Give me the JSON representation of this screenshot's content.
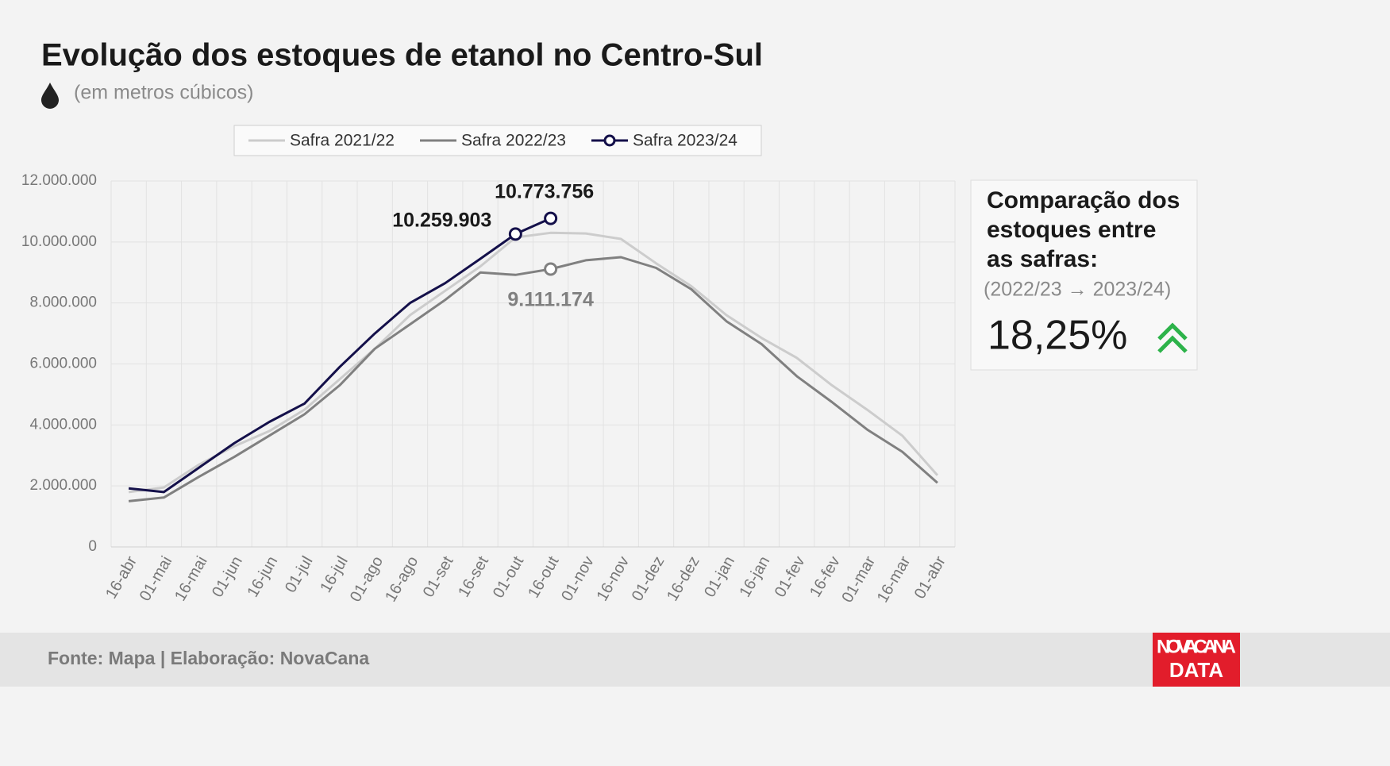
{
  "chart_data": {
    "type": "line",
    "title": "Evolução dos estoques de  etanol no Centro-Sul",
    "subtitle": "(em metros cúbicos)",
    "categories": [
      "16-abr",
      "01-mai",
      "16-mai",
      "01-jun",
      "16-jun",
      "01-jul",
      "16-jul",
      "01-ago",
      "16-ago",
      "01-set",
      "16-set",
      "01-out",
      "16-out",
      "01-nov",
      "16-nov",
      "01-dez",
      "16-dez",
      "01-jan",
      "16-jan",
      "01-fev",
      "16-fev",
      "01-mar",
      "16-mar",
      "01-abr"
    ],
    "series": [
      {
        "name": "Safra 2021/22",
        "color": "#cccccc",
        "values": [
          1800000,
          1950000,
          2700000,
          3300000,
          3800000,
          4500000,
          5500000,
          6500000,
          7600000,
          8400000,
          9200000,
          10150000,
          10300000,
          10280000,
          10100000,
          9300000,
          8550000,
          7600000,
          6850000,
          6200000,
          5300000,
          4500000,
          3650000,
          2350000
        ]
      },
      {
        "name": "Safra 2022/23",
        "color": "#808080",
        "values": [
          1500000,
          1620000,
          2300000,
          2950000,
          3650000,
          4350000,
          5300000,
          6500000,
          7300000,
          8100000,
          9000000,
          8920000,
          9111174,
          9400000,
          9500000,
          9150000,
          8450000,
          7400000,
          6650000,
          5600000,
          4750000,
          3850000,
          3120000,
          2100000
        ],
        "value_labels": [
          null,
          null,
          null,
          null,
          null,
          null,
          null,
          null,
          null,
          null,
          null,
          null,
          "9.111.174",
          null,
          null,
          null,
          null,
          null,
          null,
          null,
          null,
          null,
          null,
          null
        ]
      },
      {
        "name": "Safra 2023/24",
        "color": "#14104a",
        "values": [
          1920000,
          1800000,
          2600000,
          3400000,
          4100000,
          4700000,
          5900000,
          7000000,
          8000000,
          8650000,
          9450000,
          10259903,
          10773756,
          null,
          null,
          null,
          null,
          null,
          null,
          null,
          null,
          null,
          null,
          null
        ],
        "value_labels": [
          null,
          null,
          null,
          null,
          null,
          null,
          null,
          null,
          null,
          null,
          null,
          "10.259.903",
          "10.773.756",
          null,
          null,
          null,
          null,
          null,
          null,
          null,
          null,
          null,
          null,
          null
        ]
      }
    ],
    "ylim": [
      0,
      12000000
    ],
    "yticks": [
      0,
      {
        "value": 2000000,
        "label": "2.000.000"
      },
      {
        "value": 4000000,
        "label": "4.000.000"
      },
      {
        "value": 6000000,
        "label": "6.000.000"
      },
      {
        "value": 8000000,
        "label": "8.000.000"
      },
      {
        "value": 10000000,
        "label": "10.000.000"
      },
      {
        "value": 12000000,
        "label": "12.000.000"
      }
    ],
    "grid": true,
    "legend": "top",
    "panel": {
      "title_lines": [
        "Comparação dos",
        "estoques entre",
        "as safras:"
      ],
      "subtitle": "(2022/23 → 2023/24)",
      "value": "18,25%"
    },
    "source": "Fonte: Mapa | Elaboração: NovaCana",
    "logo": [
      "NOVACANA",
      "DATA"
    ]
  }
}
